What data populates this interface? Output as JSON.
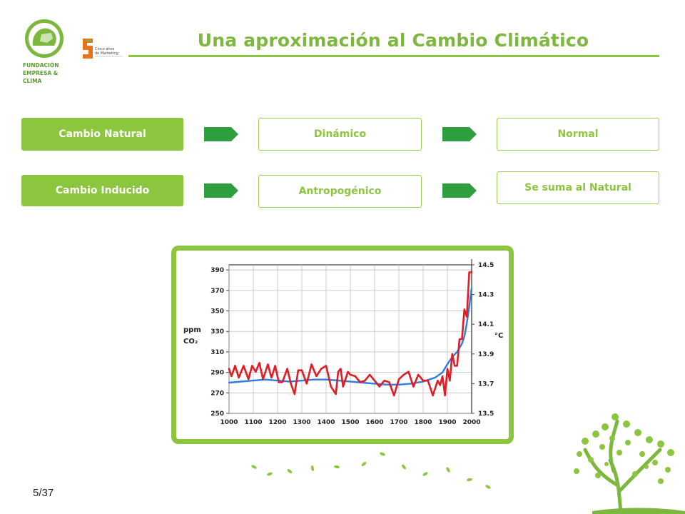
{
  "header": {
    "title": "Una aproximación al Cambio Climático",
    "logo_fec_lines": [
      "FUNDACIÓN",
      "EMPRESA &",
      "CLIMA"
    ],
    "logo_cinco_lines": [
      "Cinco años",
      "de Marketing"
    ]
  },
  "rows": [
    {
      "left": "Cambio Natural",
      "middle": "Dinámico",
      "right": "Normal"
    },
    {
      "left": "Cambio Inducido",
      "middle": "Antropogénico",
      "right": "Se suma al Natural"
    }
  ],
  "colors": {
    "accent": "#8cc63f",
    "arrow": "#2e9e3e",
    "co2_line": "#2f7de1",
    "temp_line": "#e31b23"
  },
  "chart_data": {
    "type": "line",
    "xlabel": "",
    "ylabel": "ppm CO₂",
    "ylabel_right": "°C",
    "xlim": [
      1000,
      2000
    ],
    "ylim": [
      250,
      395
    ],
    "ylim_right": [
      13.5,
      14.5
    ],
    "x_ticks": [
      "1000",
      "1100",
      "1200",
      "1300",
      "1400",
      "1500",
      "1600",
      "1700",
      "1800",
      "1900",
      "2000"
    ],
    "y_ticks": [
      "250",
      "270",
      "290",
      "310",
      "330",
      "350",
      "370",
      "390"
    ],
    "y_ticks_right": [
      "13.5",
      "13.7",
      "13.9",
      "14.1",
      "14.3",
      "14.5"
    ],
    "grid": true,
    "series": [
      {
        "axis": "left",
        "x": [
          1000,
          1050,
          1100,
          1150,
          1200,
          1250,
          1300,
          1350,
          1400,
          1450,
          1500,
          1550,
          1600,
          1650,
          1700,
          1750,
          1800,
          1850,
          1880,
          1900,
          1920,
          1940,
          1960,
          1970,
          1980,
          1990,
          2000
        ],
        "values": [
          280,
          281,
          282,
          283,
          282,
          281,
          282,
          283,
          283,
          282,
          281,
          280,
          279,
          278,
          278,
          279,
          281,
          285,
          290,
          298,
          305,
          310,
          318,
          325,
          338,
          354,
          372
        ]
      },
      {
        "axis": "right",
        "x": [
          1000,
          1010,
          1025,
          1040,
          1060,
          1080,
          1095,
          1110,
          1125,
          1140,
          1160,
          1175,
          1190,
          1205,
          1220,
          1240,
          1255,
          1270,
          1285,
          1300,
          1320,
          1340,
          1360,
          1380,
          1400,
          1420,
          1440,
          1450,
          1460,
          1470,
          1490,
          1500,
          1520,
          1540,
          1560,
          1580,
          1600,
          1620,
          1640,
          1660,
          1680,
          1700,
          1720,
          1740,
          1760,
          1780,
          1800,
          1820,
          1840,
          1860,
          1870,
          1880,
          1890,
          1900,
          1910,
          1920,
          1930,
          1940,
          1950,
          1960,
          1970,
          1980,
          1990,
          2000
        ],
        "values": [
          13.8,
          13.75,
          13.82,
          13.74,
          13.82,
          13.73,
          13.82,
          13.78,
          13.84,
          13.73,
          13.83,
          13.74,
          13.82,
          13.71,
          13.71,
          13.8,
          13.7,
          13.63,
          13.79,
          13.79,
          13.7,
          13.83,
          13.75,
          13.8,
          13.82,
          13.68,
          13.63,
          13.78,
          13.8,
          13.68,
          13.78,
          13.76,
          13.75,
          13.71,
          13.72,
          13.76,
          13.72,
          13.68,
          13.72,
          13.71,
          13.62,
          13.73,
          13.76,
          13.78,
          13.68,
          13.76,
          13.72,
          13.72,
          13.62,
          13.72,
          13.69,
          13.75,
          13.62,
          13.8,
          13.72,
          13.9,
          13.82,
          13.82,
          14.0,
          14.0,
          14.2,
          14.15,
          14.45,
          14.45
        ]
      }
    ]
  }
}
